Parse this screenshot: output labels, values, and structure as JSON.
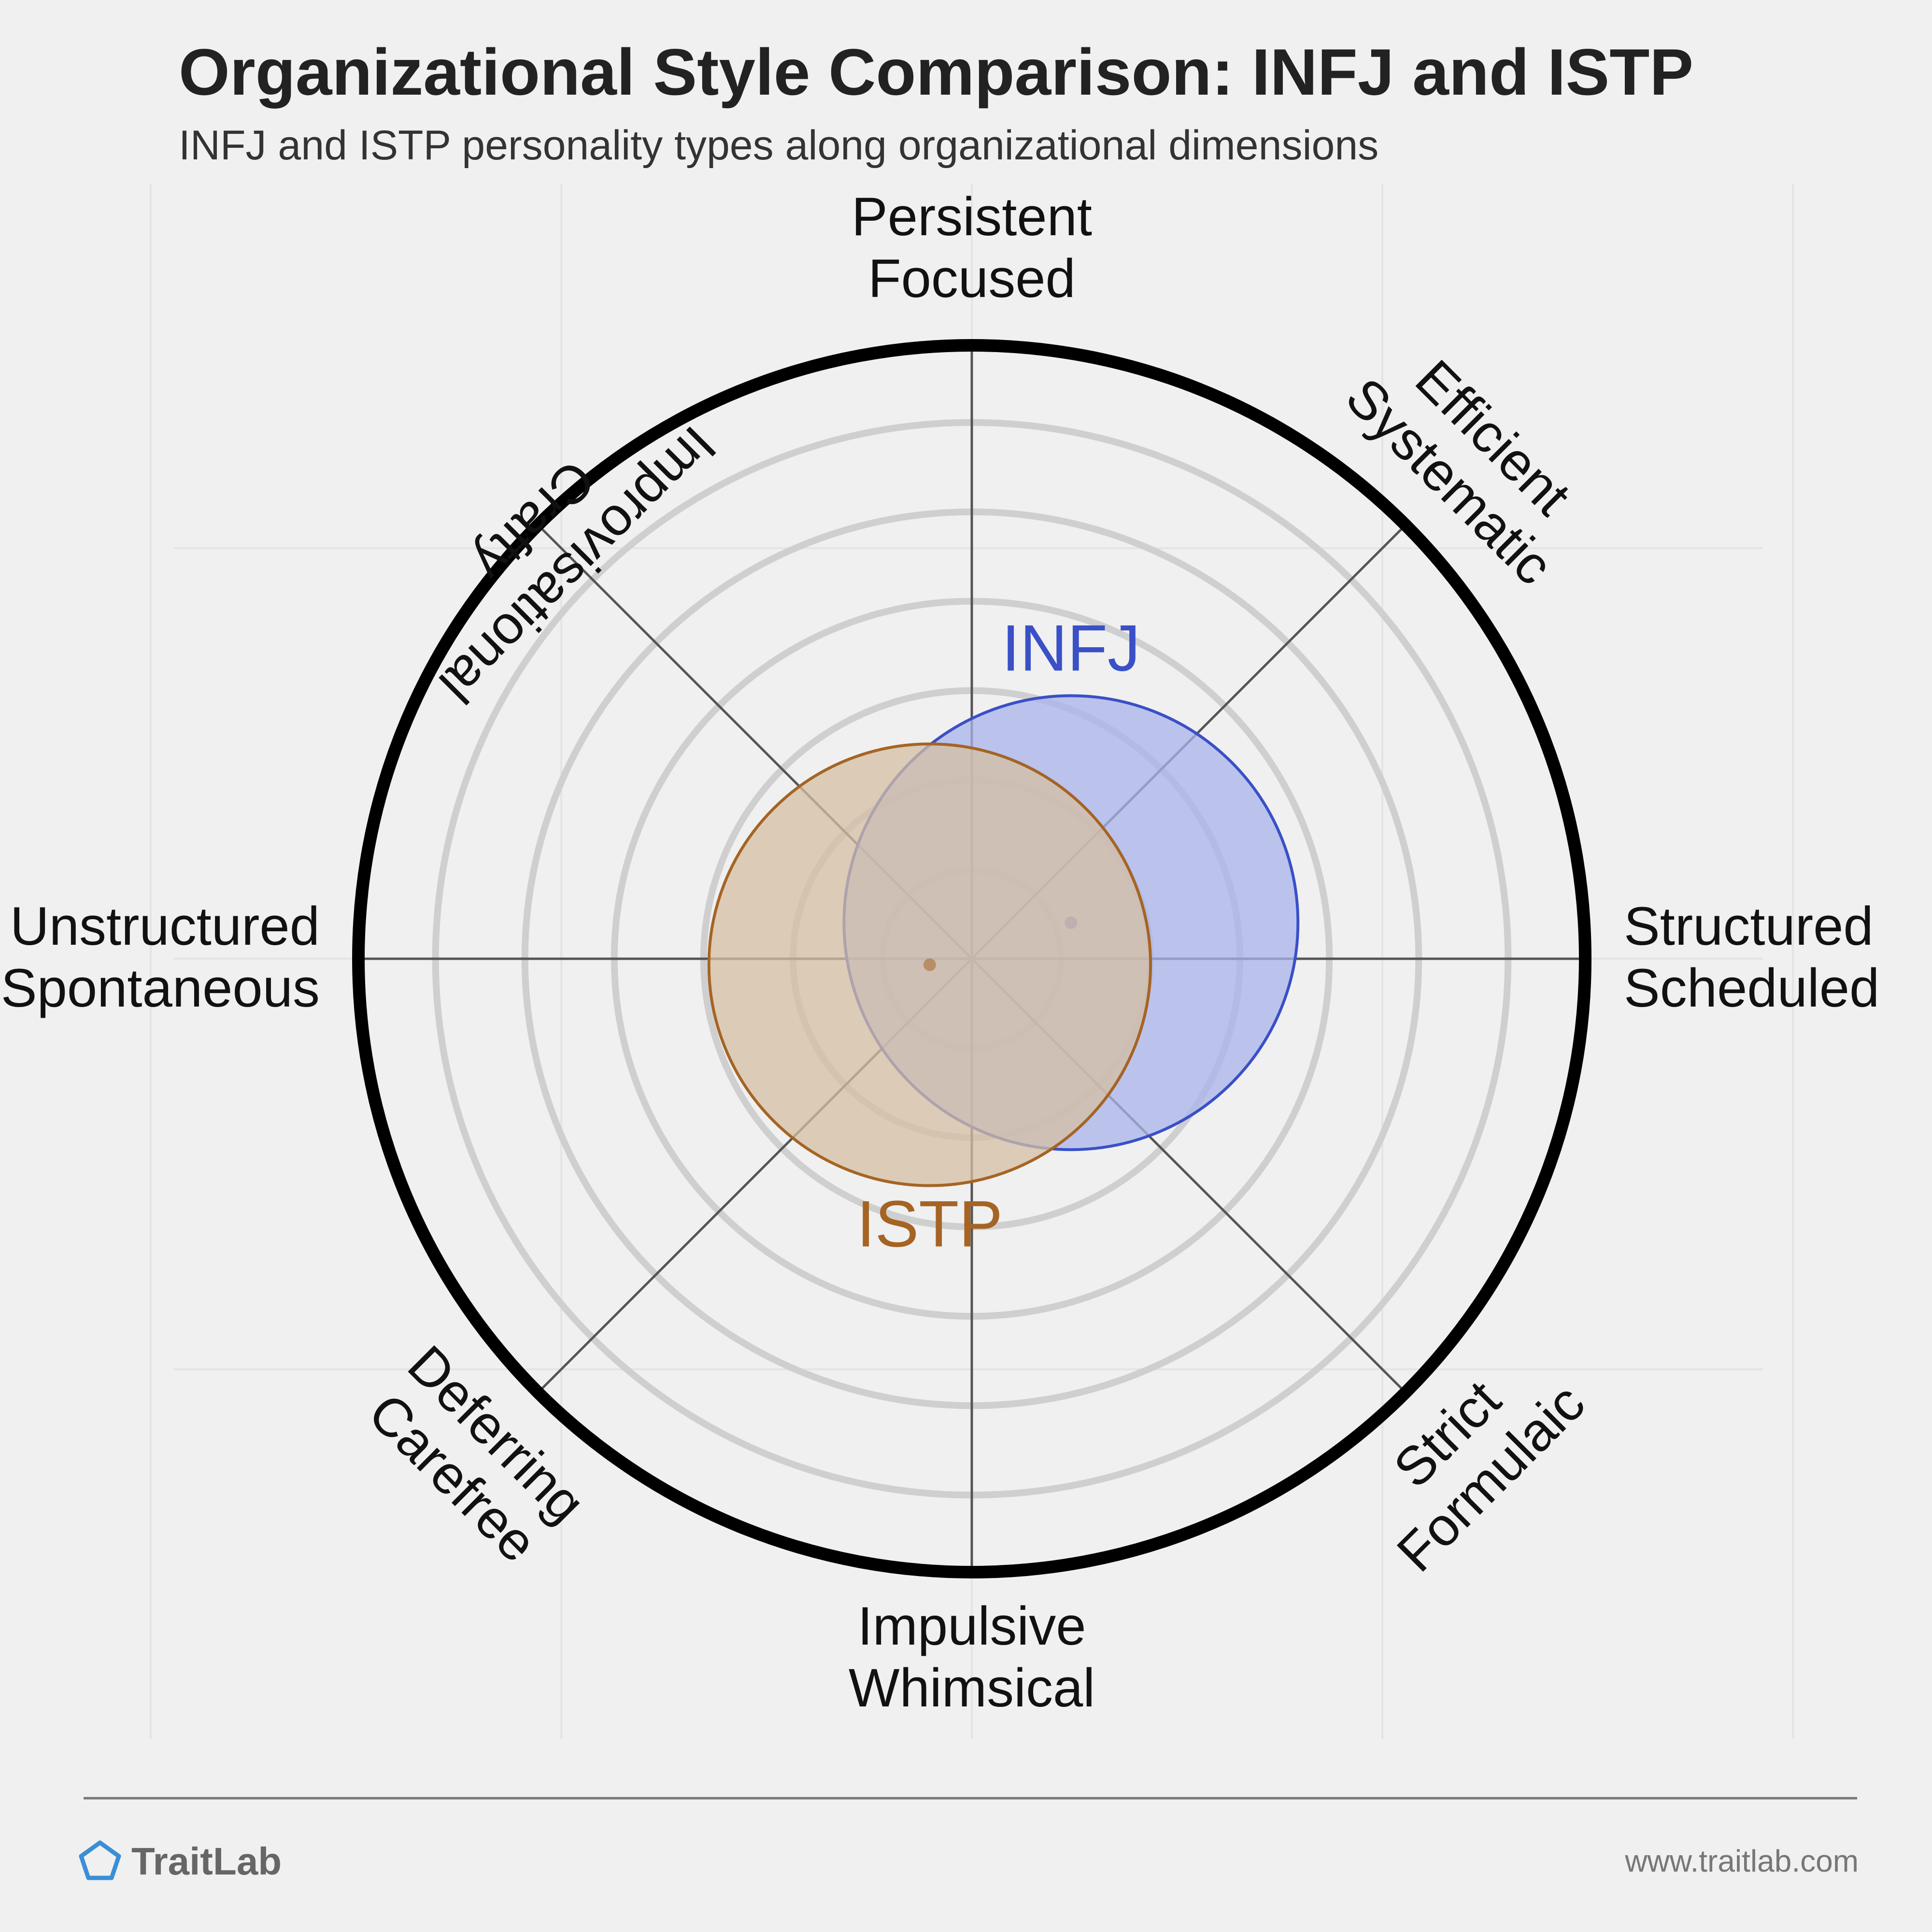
{
  "header": {
    "title": "Organizational Style Comparison: INFJ and ISTP",
    "subtitle": "INFJ and ISTP personality types along organizational dimensions"
  },
  "footer": {
    "brand": "TraitLab",
    "url": "www.traitlab.com"
  },
  "chart_data": {
    "type": "scatter",
    "title": "Organizational Style Comparison: INFJ and ISTP",
    "subtitle": "INFJ and ISTP personality types along organizational dimensions",
    "axes": [
      {
        "lines": [
          "Persistent",
          "Focused"
        ]
      },
      {
        "lines": [
          "Efficient",
          "Systematic"
        ]
      },
      {
        "lines": [
          "Structured",
          "Scheduled"
        ]
      },
      {
        "lines": [
          "Strict",
          "Formulaic"
        ]
      },
      {
        "lines": [
          "Impulsive",
          "Whimsical"
        ]
      },
      {
        "lines": [
          "Deferring",
          "Carefree"
        ]
      },
      {
        "lines": [
          "Unstructured",
          "Spontaneous"
        ]
      },
      {
        "lines": [
          "Improvisational",
          "Crafty"
        ]
      }
    ],
    "x_range": [
      -1,
      1
    ],
    "y_range": [
      -1,
      1
    ],
    "ring_count": 6,
    "series": [
      {
        "name": "INFJ",
        "x": 0.165,
        "y": 0.06,
        "spread": 0.37,
        "color": "#3a50c7",
        "fill": "#aab4ec"
      },
      {
        "name": "ISTP",
        "x": -0.07,
        "y": -0.01,
        "spread": 0.36,
        "color": "#a56424",
        "fill": "#d5bfa3"
      }
    ],
    "grid": true,
    "legend": "none"
  }
}
